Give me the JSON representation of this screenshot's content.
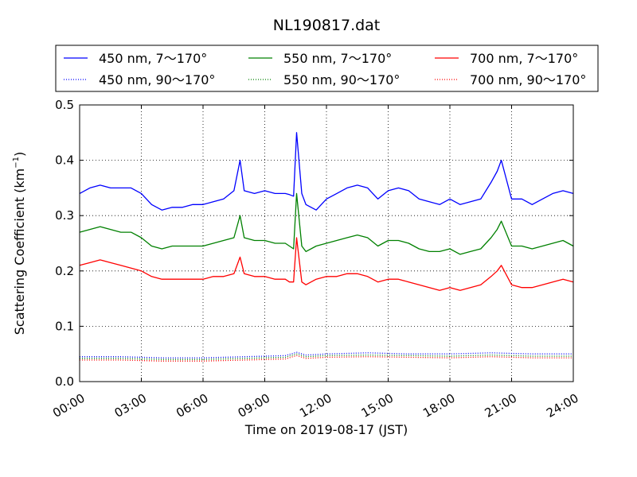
{
  "chart_data": {
    "type": "line",
    "title": "NL190817.dat",
    "xlabel": "Time on 2019-08-17 (JST)",
    "ylabel_main": "Scattering Coefficient (km",
    "ylabel_sup": "−1",
    "ylabel_close": ")",
    "xlim": [
      0,
      24
    ],
    "ylim": [
      0,
      0.5
    ],
    "grid": true,
    "legend_position": "top, outside plot",
    "x_ticks": [
      0,
      3,
      6,
      9,
      12,
      15,
      18,
      21,
      24
    ],
    "x_tick_labels": [
      "00:00",
      "03:00",
      "06:00",
      "09:00",
      "12:00",
      "15:00",
      "18:00",
      "21:00",
      "24:00"
    ],
    "y_ticks": [
      0,
      0.1,
      0.2,
      0.3,
      0.4,
      0.5
    ],
    "y_tick_labels": [
      "0.0",
      "0.1",
      "0.2",
      "0.3",
      "0.4",
      "0.5"
    ],
    "series": [
      {
        "name": "450 nm, 7～170°",
        "color": "#0000ff",
        "style": "solid",
        "x": [
          0,
          0.5,
          1,
          1.5,
          2,
          2.5,
          3,
          3.5,
          4,
          4.5,
          5,
          5.5,
          6,
          6.5,
          7,
          7.5,
          7.8,
          8,
          8.5,
          9,
          9.5,
          10,
          10.2,
          10.4,
          10.55,
          10.8,
          11,
          11.5,
          12,
          12.5,
          13,
          13.5,
          14,
          14.5,
          15,
          15.5,
          16,
          16.5,
          17,
          17.5,
          18,
          18.5,
          19,
          19.5,
          20,
          20.3,
          20.5,
          21,
          21.5,
          22,
          22.5,
          23,
          23.5,
          24
        ],
        "y": [
          0.34,
          0.35,
          0.355,
          0.35,
          0.35,
          0.35,
          0.34,
          0.32,
          0.31,
          0.315,
          0.315,
          0.32,
          0.32,
          0.325,
          0.33,
          0.345,
          0.4,
          0.345,
          0.34,
          0.345,
          0.34,
          0.34,
          0.338,
          0.335,
          0.45,
          0.34,
          0.32,
          0.31,
          0.33,
          0.34,
          0.35,
          0.355,
          0.35,
          0.33,
          0.345,
          0.35,
          0.345,
          0.33,
          0.325,
          0.32,
          0.33,
          0.32,
          0.325,
          0.33,
          0.36,
          0.38,
          0.4,
          0.33,
          0.33,
          0.32,
          0.33,
          0.34,
          0.345,
          0.34
        ]
      },
      {
        "name": "550 nm, 7～170°",
        "color": "#008000",
        "style": "solid",
        "x": [
          0,
          0.5,
          1,
          1.5,
          2,
          2.5,
          3,
          3.5,
          4,
          4.5,
          5,
          5.5,
          6,
          6.5,
          7,
          7.5,
          7.8,
          8,
          8.5,
          9,
          9.5,
          10,
          10.2,
          10.4,
          10.55,
          10.8,
          11,
          11.5,
          12,
          12.5,
          13,
          13.5,
          14,
          14.5,
          15,
          15.5,
          16,
          16.5,
          17,
          17.5,
          18,
          18.5,
          19,
          19.5,
          20,
          20.3,
          20.5,
          21,
          21.5,
          22,
          22.5,
          23,
          23.5,
          24
        ],
        "y": [
          0.27,
          0.275,
          0.28,
          0.275,
          0.27,
          0.27,
          0.26,
          0.245,
          0.24,
          0.245,
          0.245,
          0.245,
          0.245,
          0.25,
          0.255,
          0.26,
          0.3,
          0.26,
          0.255,
          0.255,
          0.25,
          0.25,
          0.245,
          0.24,
          0.34,
          0.245,
          0.235,
          0.245,
          0.25,
          0.255,
          0.26,
          0.265,
          0.26,
          0.245,
          0.255,
          0.255,
          0.25,
          0.24,
          0.235,
          0.235,
          0.24,
          0.23,
          0.235,
          0.24,
          0.26,
          0.275,
          0.29,
          0.245,
          0.245,
          0.24,
          0.245,
          0.25,
          0.255,
          0.245
        ]
      },
      {
        "name": "700 nm, 7～170°",
        "color": "#ff0000",
        "style": "solid",
        "x": [
          0,
          0.5,
          1,
          1.5,
          2,
          2.5,
          3,
          3.5,
          4,
          4.5,
          5,
          5.5,
          6,
          6.5,
          7,
          7.5,
          7.8,
          8,
          8.5,
          9,
          9.5,
          10,
          10.2,
          10.4,
          10.55,
          10.8,
          11,
          11.5,
          12,
          12.5,
          13,
          13.5,
          14,
          14.5,
          15,
          15.5,
          16,
          16.5,
          17,
          17.5,
          18,
          18.5,
          19,
          19.5,
          20,
          20.3,
          20.5,
          21,
          21.5,
          22,
          22.5,
          23,
          23.5,
          24
        ],
        "y": [
          0.21,
          0.215,
          0.22,
          0.215,
          0.21,
          0.205,
          0.2,
          0.19,
          0.185,
          0.185,
          0.185,
          0.185,
          0.185,
          0.19,
          0.19,
          0.195,
          0.225,
          0.195,
          0.19,
          0.19,
          0.185,
          0.185,
          0.18,
          0.18,
          0.26,
          0.18,
          0.175,
          0.185,
          0.19,
          0.19,
          0.195,
          0.195,
          0.19,
          0.18,
          0.185,
          0.185,
          0.18,
          0.175,
          0.17,
          0.165,
          0.17,
          0.165,
          0.17,
          0.175,
          0.19,
          0.2,
          0.21,
          0.175,
          0.17,
          0.17,
          0.175,
          0.18,
          0.185,
          0.18
        ]
      },
      {
        "name": "450 nm, 90～170°",
        "color": "#0000ff",
        "style": "dotted",
        "x": [
          0,
          2,
          4,
          6,
          8,
          10,
          10.55,
          11,
          12,
          14,
          16,
          18,
          20,
          22,
          24
        ],
        "y": [
          0.045,
          0.045,
          0.043,
          0.043,
          0.045,
          0.047,
          0.053,
          0.048,
          0.05,
          0.052,
          0.05,
          0.05,
          0.052,
          0.05,
          0.05
        ]
      },
      {
        "name": "550 nm, 90～170°",
        "color": "#008000",
        "style": "dotted",
        "x": [
          0,
          2,
          4,
          6,
          8,
          10,
          10.55,
          11,
          12,
          14,
          16,
          18,
          20,
          22,
          24
        ],
        "y": [
          0.042,
          0.042,
          0.04,
          0.04,
          0.042,
          0.044,
          0.05,
          0.045,
          0.047,
          0.048,
          0.047,
          0.046,
          0.048,
          0.046,
          0.046
        ]
      },
      {
        "name": "700 nm, 90～170°",
        "color": "#ff0000",
        "style": "dotted",
        "x": [
          0,
          2,
          4,
          6,
          8,
          10,
          10.55,
          11,
          12,
          14,
          16,
          18,
          20,
          22,
          24
        ],
        "y": [
          0.039,
          0.039,
          0.037,
          0.037,
          0.039,
          0.041,
          0.047,
          0.042,
          0.044,
          0.045,
          0.044,
          0.043,
          0.045,
          0.043,
          0.043
        ]
      }
    ],
    "legend_order": [
      0,
      1,
      2,
      3,
      4,
      5
    ]
  }
}
